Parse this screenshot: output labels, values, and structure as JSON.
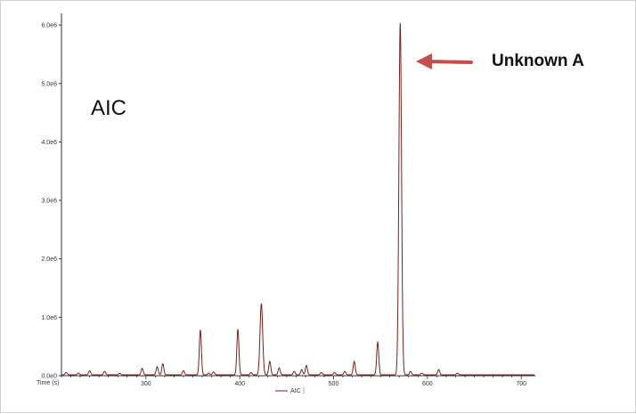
{
  "chart_data": {
    "type": "line",
    "title": "AIC",
    "xlabel": "Time (s)",
    "ylabel": "",
    "xlim": [
      210,
      715
    ],
    "ylim": [
      0,
      6200000
    ],
    "x_ticks": [
      300,
      400,
      500,
      600,
      700
    ],
    "y_ticks": [
      {
        "value": 0,
        "label": "0.0e0"
      },
      {
        "value": 1000000,
        "label": "1.0e6"
      },
      {
        "value": 2000000,
        "label": "2.0e6"
      },
      {
        "value": 3000000,
        "label": "3.0e6"
      },
      {
        "value": 4000000,
        "label": "4.0e6"
      },
      {
        "value": 5000000,
        "label": "5.0e6"
      },
      {
        "value": 6000000,
        "label": "6.0e6"
      }
    ],
    "legend": {
      "position": "bottom-center",
      "entries": [
        "AIC"
      ]
    },
    "series_color": "#7a1f1f",
    "peaks": [
      {
        "x": 215,
        "y": 40000
      },
      {
        "x": 228,
        "y": 30000
      },
      {
        "x": 240,
        "y": 70000
      },
      {
        "x": 256,
        "y": 60000
      },
      {
        "x": 272,
        "y": 25000
      },
      {
        "x": 296,
        "y": 110000
      },
      {
        "x": 312,
        "y": 140000
      },
      {
        "x": 318,
        "y": 190000
      },
      {
        "x": 340,
        "y": 70000
      },
      {
        "x": 358,
        "y": 770000
      },
      {
        "x": 367,
        "y": 30000
      },
      {
        "x": 372,
        "y": 50000
      },
      {
        "x": 398,
        "y": 780000
      },
      {
        "x": 412,
        "y": 40000
      },
      {
        "x": 423,
        "y": 1220000
      },
      {
        "x": 432,
        "y": 230000
      },
      {
        "x": 442,
        "y": 120000
      },
      {
        "x": 458,
        "y": 60000
      },
      {
        "x": 466,
        "y": 90000
      },
      {
        "x": 471,
        "y": 160000
      },
      {
        "x": 487,
        "y": 40000
      },
      {
        "x": 501,
        "y": 40000
      },
      {
        "x": 512,
        "y": 60000
      },
      {
        "x": 522,
        "y": 230000
      },
      {
        "x": 547,
        "y": 560000
      },
      {
        "x": 571,
        "y": 6020000
      },
      {
        "x": 582,
        "y": 60000
      },
      {
        "x": 594,
        "y": 30000
      },
      {
        "x": 612,
        "y": 90000
      },
      {
        "x": 632,
        "y": 30000
      }
    ],
    "baseline": 15000,
    "annotations": [
      {
        "text": "Unknown A",
        "target_x": 571,
        "target_y": 5850000
      }
    ]
  }
}
